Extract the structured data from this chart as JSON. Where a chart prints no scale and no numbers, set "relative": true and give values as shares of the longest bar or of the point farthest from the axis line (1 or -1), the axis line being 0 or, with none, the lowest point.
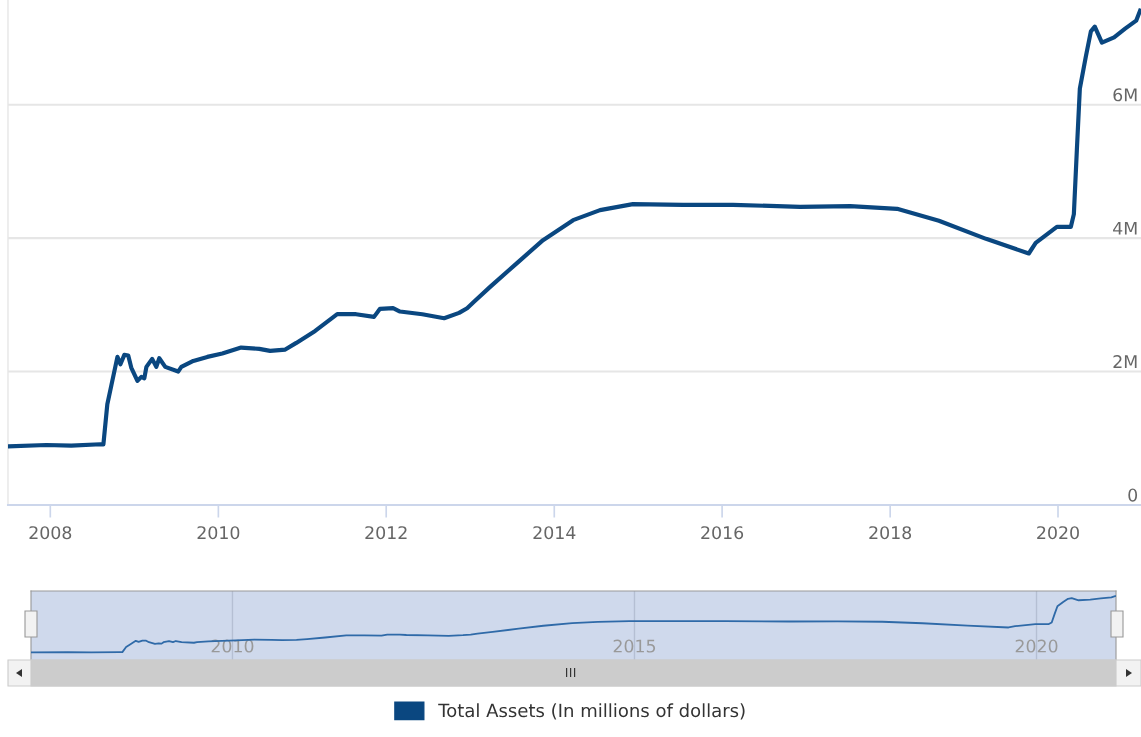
{
  "chart_data": [
    {
      "type": "line",
      "legend": "bottom",
      "grid": "y",
      "marker": "none",
      "line_style": "solid",
      "xlim": [
        "2007-07-01",
        "2020-12-27"
      ],
      "xticks": [
        {
          "value": "2008-01-01",
          "label": "2008"
        },
        {
          "value": "2010-01-01",
          "label": "2010"
        },
        {
          "value": "2012-01-01",
          "label": "2012"
        },
        {
          "value": "2014-01-01",
          "label": "2014"
        },
        {
          "value": "2016-01-01",
          "label": "2016"
        },
        {
          "value": "2018-01-01",
          "label": "2018"
        },
        {
          "value": "2020-01-01",
          "label": "2020"
        }
      ],
      "ylim": [
        0,
        7570000
      ],
      "yticks": [
        0,
        {
          "value": 2000000,
          "label": "2M"
        },
        {
          "value": 4000000,
          "label": "4M"
        },
        {
          "value": 6000000,
          "label": "6M"
        }
      ],
      "x": [
        "2007-07-02",
        "2007-12-15",
        "2008-04-01",
        "2008-08-06",
        "2008-08-19",
        "2008-09-05",
        "2008-09-23",
        "2008-10-19",
        "2008-11-01",
        "2008-11-18",
        "2008-12-05",
        "2008-12-18",
        "2009-01-14",
        "2009-01-31",
        "2009-02-13",
        "2009-02-22",
        "2009-03-19",
        "2009-04-06",
        "2009-04-19",
        "2009-05-15",
        "2009-07-10",
        "2009-07-24",
        "2009-09-14",
        "2009-11-14",
        "2010-01-18",
        "2010-04-10",
        "2010-06-28",
        "2010-08-14",
        "2010-10-19",
        "2010-12-06",
        "2011-02-26",
        "2011-06-02",
        "2011-08-23",
        "2011-11-09",
        "2011-12-05",
        "2012-01-31",
        "2012-03-01",
        "2012-06-06",
        "2012-09-09",
        "2012-11-13",
        "2012-12-18",
        "2013-01-18",
        "2013-03-28",
        "2013-07-24",
        "2013-11-13",
        "2014-03-24",
        "2014-07-19",
        "2014-12-09",
        "2015-07-15",
        "2016-02-17",
        "2016-12-05",
        "2017-07-11",
        "2018-01-31",
        "2018-08-01",
        "2019-02-22",
        "2019-08-27",
        "2019-09-26",
        "2019-12-27",
        "2020-02-26",
        "2020-03-10",
        "2020-03-23",
        "2020-04-05",
        "2020-05-01",
        "2020-05-23",
        "2020-06-09",
        "2020-07-10",
        "2020-09-01",
        "2020-10-19",
        "2020-12-06",
        "2020-12-23"
      ],
      "series": [
        {
          "name": "Total Assets (In millions of dollars)",
          "color": "#0a4780",
          "values": [
            880000,
            900000,
            890000,
            910000,
            910000,
            1510000,
            1800000,
            2220000,
            2110000,
            2250000,
            2240000,
            2060000,
            1860000,
            1920000,
            1900000,
            2070000,
            2190000,
            2070000,
            2200000,
            2070000,
            2000000,
            2070000,
            2160000,
            2220000,
            2270000,
            2360000,
            2340000,
            2310000,
            2330000,
            2430000,
            2610000,
            2860000,
            2860000,
            2820000,
            2940000,
            2950000,
            2900000,
            2860000,
            2800000,
            2880000,
            2950000,
            3050000,
            3270000,
            3630000,
            3970000,
            4270000,
            4420000,
            4510000,
            4500000,
            4500000,
            4470000,
            4480000,
            4440000,
            4260000,
            3990000,
            3770000,
            3930000,
            4170000,
            4170000,
            4360000,
            5320000,
            6240000,
            6720000,
            7100000,
            7170000,
            6930000,
            7010000,
            7140000,
            7260000,
            7410000
          ]
        }
      ]
    },
    {
      "type": "line",
      "relative": true,
      "grid": "x",
      "tick_labels": "x",
      "marker": "none",
      "line_style": "solid",
      "xlim": [
        "2007-07-01",
        "2020-12-27"
      ],
      "xticks": [
        {
          "value": "2010-01-01",
          "label": "2010"
        },
        {
          "value": "2015-01-01",
          "label": "2015"
        },
        {
          "value": "2020-01-01",
          "label": "2020"
        }
      ],
      "x": [
        "2007-07-02",
        "2007-12-15",
        "2008-04-01",
        "2008-08-06",
        "2008-08-19",
        "2008-09-05",
        "2008-09-23",
        "2008-10-19",
        "2008-11-01",
        "2008-11-18",
        "2008-12-05",
        "2008-12-18",
        "2009-01-14",
        "2009-01-31",
        "2009-02-13",
        "2009-02-22",
        "2009-03-19",
        "2009-04-06",
        "2009-04-19",
        "2009-05-15",
        "2009-07-10",
        "2009-07-24",
        "2009-09-14",
        "2009-11-14",
        "2010-01-18",
        "2010-04-10",
        "2010-06-28",
        "2010-08-14",
        "2010-10-19",
        "2010-12-06",
        "2011-02-26",
        "2011-06-02",
        "2011-08-23",
        "2011-11-09",
        "2011-12-05",
        "2012-01-31",
        "2012-03-01",
        "2012-06-06",
        "2012-09-09",
        "2012-11-13",
        "2012-12-18",
        "2013-01-18",
        "2013-03-28",
        "2013-07-24",
        "2013-11-13",
        "2014-03-24",
        "2014-07-19",
        "2014-12-09",
        "2015-07-15",
        "2016-02-17",
        "2016-12-05",
        "2017-07-11",
        "2018-01-31",
        "2018-08-01",
        "2019-02-22",
        "2019-08-27",
        "2019-09-26",
        "2019-12-27",
        "2020-02-26",
        "2020-03-10",
        "2020-03-23",
        "2020-04-05",
        "2020-05-01",
        "2020-05-23",
        "2020-06-09",
        "2020-07-10",
        "2020-09-01",
        "2020-10-19",
        "2020-12-06",
        "2020-12-23"
      ],
      "series": [
        {
          "color": "#2f6aa8",
          "values": [
            0.119,
            0.121,
            0.12,
            0.123,
            0.123,
            0.204,
            0.243,
            0.3,
            0.285,
            0.304,
            0.302,
            0.278,
            0.251,
            0.259,
            0.256,
            0.279,
            0.296,
            0.279,
            0.297,
            0.279,
            0.27,
            0.279,
            0.291,
            0.3,
            0.306,
            0.318,
            0.316,
            0.312,
            0.314,
            0.328,
            0.352,
            0.386,
            0.386,
            0.381,
            0.397,
            0.398,
            0.391,
            0.386,
            0.378,
            0.389,
            0.398,
            0.412,
            0.441,
            0.49,
            0.536,
            0.576,
            0.596,
            0.609,
            0.607,
            0.607,
            0.603,
            0.605,
            0.599,
            0.575,
            0.538,
            0.509,
            0.53,
            0.563,
            0.563,
            0.588,
            0.718,
            0.842,
            0.907,
            0.958,
            0.968,
            0.935,
            0.946,
            0.964,
            0.98,
            1
          ]
        }
      ]
    }
  ]
}
